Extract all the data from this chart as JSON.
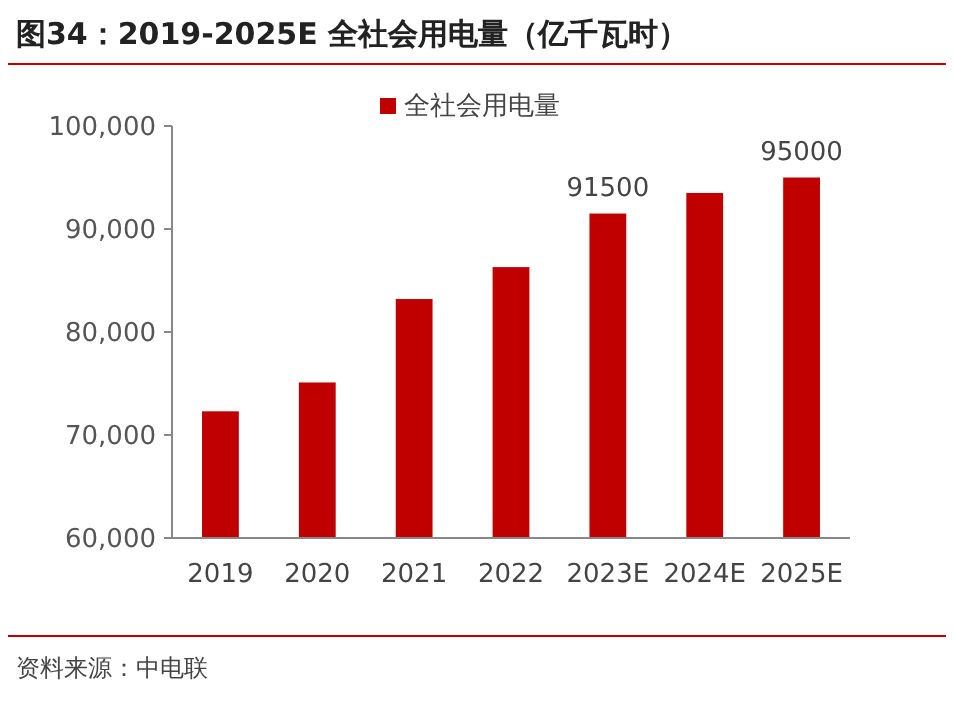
{
  "chart_data": {
    "type": "bar",
    "title": "图34：2019-2025E 全社会用电量（亿千瓦时）",
    "categories": [
      "2019",
      "2020",
      "2021",
      "2022",
      "2023E",
      "2024E",
      "2025E"
    ],
    "series": [
      {
        "name": "全社会用电量",
        "color": "#c00000",
        "values": [
          72300,
          75100,
          83200,
          86300,
          91500,
          93500,
          95000
        ]
      }
    ],
    "value_labels": [
      null,
      null,
      null,
      null,
      "91500",
      null,
      "95000"
    ],
    "ylim": [
      60000,
      100000
    ],
    "yticks": [
      {
        "value": 60000,
        "label": "60,000"
      },
      {
        "value": 70000,
        "label": "70,000"
      },
      {
        "value": 80000,
        "label": "80,000"
      },
      {
        "value": 90000,
        "label": "90,000"
      },
      {
        "value": 100000,
        "label": "100,000"
      }
    ],
    "legend": "top",
    "grid": false,
    "annotations": [
      "资料来源：中电联"
    ]
  }
}
